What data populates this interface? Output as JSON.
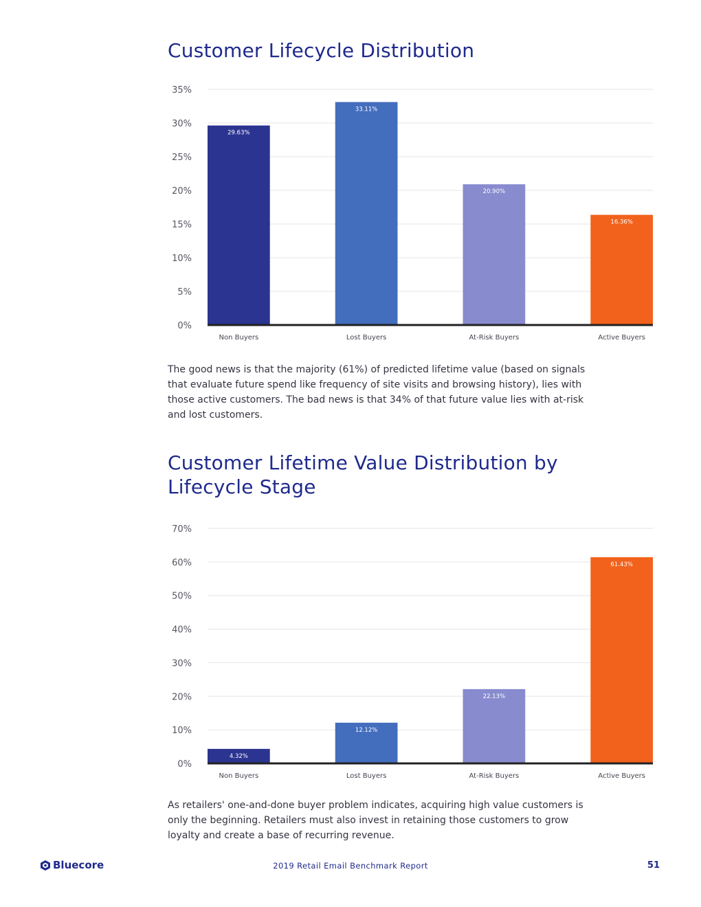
{
  "sections": [
    {
      "title": "Customer Lifecycle Distribution",
      "paragraph": "The good news is that the majority (61%) of predicted lifetime value (based on signals that evaluate future spend like frequency of site visits and browsing history), lies with those active customers. The bad news is that 34% of that future value lies with at-risk and lost customers."
    },
    {
      "title": "Customer Lifetime Value Distribution by Lifecycle Stage",
      "paragraph": "As retailers' one-and-done buyer problem indicates, acquiring high value customers is only the beginning. Retailers must also invest in retaining those customers to grow loyalty and create a base of recurring revenue."
    }
  ],
  "chart_data": [
    {
      "type": "bar",
      "title": "Customer Lifecycle Distribution",
      "categories": [
        "Non Buyers",
        "Lost Buyers",
        "At-Risk Buyers",
        "Active Buyers"
      ],
      "values": [
        29.63,
        33.11,
        20.9,
        16.36
      ],
      "data_labels": [
        "29.63%",
        "33.11%",
        "20.90%",
        "16.36%"
      ],
      "colors": [
        "#2b3490",
        "#436dbd",
        "#888bce",
        "#f2621c"
      ],
      "yticks": [
        "0%",
        "5%",
        "10%",
        "15%",
        "20%",
        "25%",
        "30%",
        "35%"
      ],
      "ylim": [
        0,
        35
      ],
      "ystep": 5,
      "xlabel": "",
      "ylabel": "",
      "grid": true,
      "legend": "none"
    },
    {
      "type": "bar",
      "title": "Customer Lifetime Value Distribution by Lifecycle Stage",
      "categories": [
        "Non Buyers",
        "Lost Buyers",
        "At-Risk Buyers",
        "Active Buyers"
      ],
      "values": [
        4.32,
        12.12,
        22.13,
        61.43
      ],
      "data_labels": [
        "4.32%",
        "12.12%",
        "22.13%",
        "61.43%"
      ],
      "colors": [
        "#2b3490",
        "#436dbd",
        "#888bce",
        "#f2621c"
      ],
      "yticks": [
        "0%",
        "10%",
        "20%",
        "30%",
        "40%",
        "50%",
        "60%",
        "70%"
      ],
      "ylim": [
        0,
        70
      ],
      "ystep": 10,
      "xlabel": "",
      "ylabel": "",
      "grid": true,
      "legend": "none"
    }
  ],
  "footer": {
    "logo_text": "Bluecore",
    "report_title": "2019 Retail Email Benchmark Report",
    "page_number": "51"
  },
  "colors": {
    "heading": "#1f2a8c",
    "body_text": "#333340",
    "grid": "#e6e6e6",
    "axis": "#222222"
  }
}
